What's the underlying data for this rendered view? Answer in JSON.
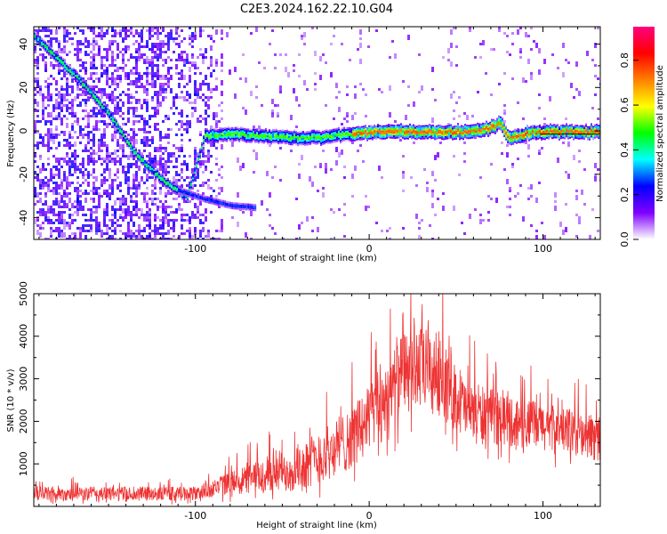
{
  "title": "C2E3.2024.162.22.10.G04",
  "chart_data": [
    {
      "type": "heatmap",
      "xlabel": "Height of straight line (km)",
      "ylabel": "Frequency (Hz)",
      "xlim": [
        -193,
        133
      ],
      "ylim": [
        -50,
        48
      ],
      "x_ticks": [
        -100,
        0,
        100
      ],
      "y_ticks": [
        -40,
        -20,
        0,
        20,
        40
      ],
      "colorbar": {
        "label": "Normalized spectral amplitude",
        "range": [
          0,
          0.95
        ],
        "ticks": [
          "0.0",
          "0.2",
          "0.4",
          "0.6",
          "0.8"
        ],
        "colors": [
          "#ffffff",
          "#8000ff",
          "#0000ff",
          "#00ffff",
          "#00ff00",
          "#ffff00",
          "#ff8000",
          "#ff0000",
          "#ff0080"
        ]
      },
      "main_trace": [
        {
          "x": -193,
          "y": 44
        },
        {
          "x": -180,
          "y": 34
        },
        {
          "x": -165,
          "y": 22
        },
        {
          "x": -150,
          "y": 8
        },
        {
          "x": -135,
          "y": -10
        },
        {
          "x": -120,
          "y": -22
        },
        {
          "x": -105,
          "y": -30
        },
        {
          "x": -95,
          "y": -2
        },
        {
          "x": -80,
          "y": -1
        },
        {
          "x": -60,
          "y": -2
        },
        {
          "x": -40,
          "y": -3
        },
        {
          "x": -20,
          "y": -2
        },
        {
          "x": 0,
          "y": 0
        },
        {
          "x": 20,
          "y": 0
        },
        {
          "x": 40,
          "y": 0
        },
        {
          "x": 60,
          "y": 0
        },
        {
          "x": 70,
          "y": 2
        },
        {
          "x": 75,
          "y": 4
        },
        {
          "x": 80,
          "y": -3
        },
        {
          "x": 90,
          "y": -1
        },
        {
          "x": 100,
          "y": 0
        },
        {
          "x": 133,
          "y": 0
        }
      ],
      "secondary_trace": [
        {
          "x": -110,
          "y": -27
        },
        {
          "x": -95,
          "y": -31
        },
        {
          "x": -80,
          "y": -34
        },
        {
          "x": -65,
          "y": -35
        }
      ]
    },
    {
      "type": "line",
      "xlabel": "Height of straight line (km)",
      "ylabel": "SNR (10 * v/v)",
      "xlim": [
        -193,
        133
      ],
      "ylim": [
        0,
        5000
      ],
      "x_ticks": [
        -100,
        0,
        100
      ],
      "y_ticks": [
        1000,
        2000,
        3000,
        4000,
        5000
      ],
      "series": [
        {
          "color": "#ee3333",
          "envelope": [
            {
              "x": -193,
              "y": 300,
              "spread": 280
            },
            {
              "x": -100,
              "y": 300,
              "spread": 280
            },
            {
              "x": -80,
              "y": 550,
              "spread": 450
            },
            {
              "x": -50,
              "y": 800,
              "spread": 800
            },
            {
              "x": -30,
              "y": 1100,
              "spread": 1000
            },
            {
              "x": -10,
              "y": 1600,
              "spread": 1200
            },
            {
              "x": 10,
              "y": 2600,
              "spread": 1500
            },
            {
              "x": 25,
              "y": 3300,
              "spread": 1700
            },
            {
              "x": 40,
              "y": 3100,
              "spread": 1600
            },
            {
              "x": 55,
              "y": 2300,
              "spread": 1200
            },
            {
              "x": 80,
              "y": 2000,
              "spread": 1000
            },
            {
              "x": 110,
              "y": 1800,
              "spread": 900
            },
            {
              "x": 133,
              "y": 1600,
              "spread": 900
            }
          ]
        }
      ]
    }
  ]
}
